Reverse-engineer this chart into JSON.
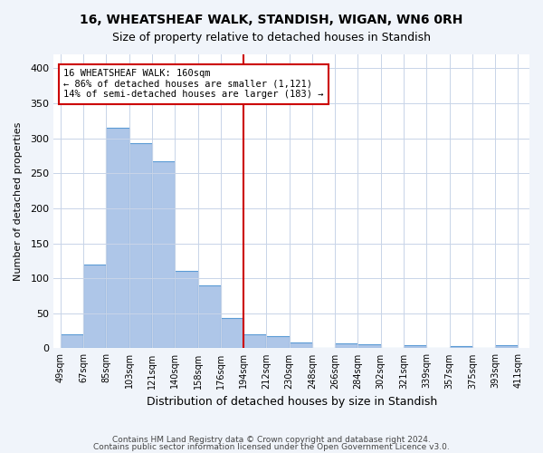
{
  "title": "16, WHEATSHEAF WALK, STANDISH, WIGAN, WN6 0RH",
  "subtitle": "Size of property relative to detached houses in Standish",
  "xlabel": "Distribution of detached houses by size in Standish",
  "ylabel": "Number of detached properties",
  "bar_labels": [
    "49sqm",
    "67sqm",
    "85sqm",
    "103sqm",
    "121sqm",
    "140sqm",
    "158sqm",
    "176sqm",
    "194sqm",
    "212sqm",
    "230sqm",
    "248sqm",
    "266sqm",
    "284sqm",
    "302sqm",
    "321sqm",
    "339sqm",
    "357sqm",
    "375sqm",
    "393sqm",
    "411sqm"
  ],
  "bar_values": [
    20,
    120,
    315,
    293,
    267,
    110,
    90,
    43,
    20,
    17,
    8,
    0,
    7,
    6,
    0,
    5,
    0,
    3,
    0,
    5
  ],
  "bar_color": "#aec6e8",
  "bar_edge_color": "#5b9bd5",
  "vline_x": 8,
  "vline_color": "#cc0000",
  "annotation_text": "16 WHEATSHEAF WALK: 160sqm\n← 86% of detached houses are smaller (1,121)\n14% of semi-detached houses are larger (183) →",
  "annotation_box_edge_color": "#cc0000",
  "ylim": [
    0,
    420
  ],
  "yticks": [
    0,
    50,
    100,
    150,
    200,
    250,
    300,
    350,
    400
  ],
  "footer_line1": "Contains HM Land Registry data © Crown copyright and database right 2024.",
  "footer_line2": "Contains public sector information licensed under the Open Government Licence v3.0.",
  "bg_color": "#f0f4fa",
  "plot_bg_color": "#ffffff",
  "grid_color": "#c8d4e8"
}
